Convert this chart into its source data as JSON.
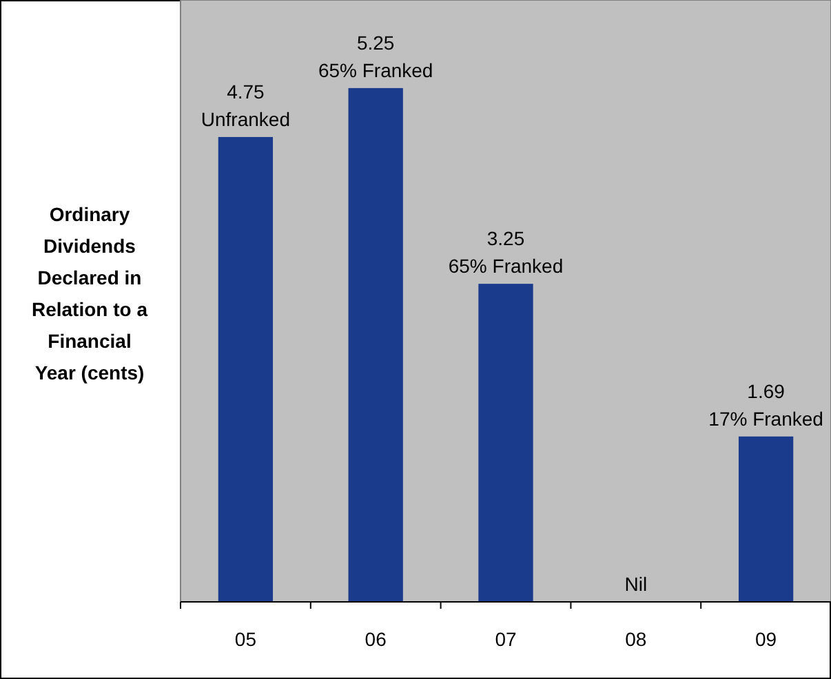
{
  "chart_data": {
    "type": "bar",
    "ylabel": "Ordinary Dividends Declared in Relation to a Financial Year (cents)",
    "categories": [
      "05",
      "06",
      "07",
      "08",
      "09"
    ],
    "values": [
      4.75,
      5.25,
      3.25,
      0,
      1.69
    ],
    "value_labels": [
      "4.75\nUnfranked",
      "5.25\n65% Franked",
      "3.25\n65% Franked",
      "Nil",
      "1.69\n17% Franked"
    ],
    "color": "#1a3a8c",
    "ylim": [
      0,
      6.15
    ]
  }
}
